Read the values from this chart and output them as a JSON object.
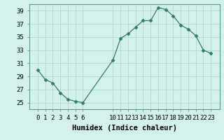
{
  "x": [
    0,
    1,
    2,
    3,
    4,
    5,
    6,
    10,
    11,
    12,
    13,
    14,
    15,
    16,
    17,
    18,
    19,
    20,
    21,
    22,
    23
  ],
  "y": [
    30,
    28.5,
    28,
    26.5,
    25.5,
    25.2,
    25.0,
    31.5,
    34.8,
    35.5,
    36.5,
    37.5,
    37.5,
    39.5,
    39.2,
    38.2,
    36.8,
    36.2,
    35.2,
    33.0,
    32.5
  ],
  "line_color": "#2e7d6e",
  "marker": "D",
  "markersize": 2.5,
  "bg_color": "#d4f0ea",
  "grid_color": "#aed8d0",
  "xlabel": "Humidex (Indice chaleur)",
  "ylim": [
    24.0,
    40.0
  ],
  "yticks": [
    25,
    27,
    29,
    31,
    33,
    35,
    37,
    39
  ],
  "xticks": [
    0,
    1,
    2,
    3,
    4,
    5,
    6,
    10,
    11,
    12,
    13,
    14,
    15,
    16,
    17,
    18,
    19,
    20,
    21,
    22,
    23
  ],
  "xlabel_fontsize": 7.5,
  "tick_fontsize": 6.5,
  "spine_color": "#5a9a90"
}
